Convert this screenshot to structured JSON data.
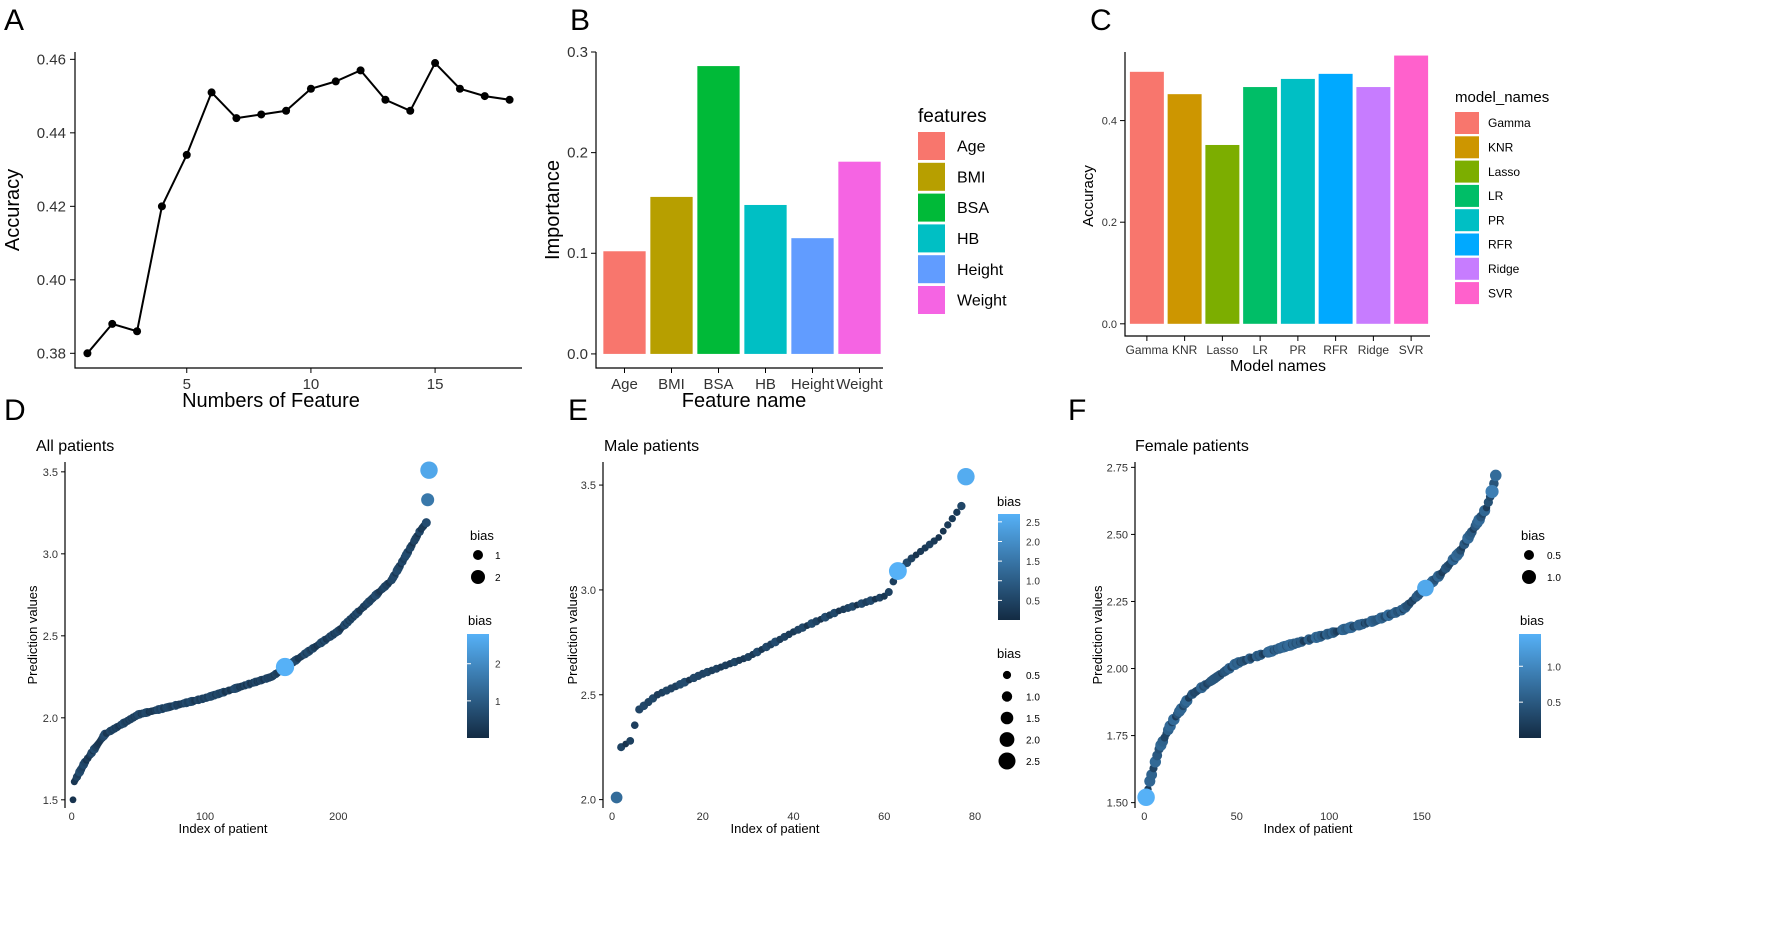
{
  "colors": {
    "line": "#000000",
    "point_dark": "#132B43",
    "point_light": "#56B1F7"
  },
  "chart_data": [
    {
      "panel": "A",
      "type": "line",
      "xlabel": "Numbers of Feature",
      "ylabel": "Accuracy",
      "x": [
        1,
        2,
        3,
        4,
        5,
        6,
        7,
        8,
        9,
        10,
        11,
        12,
        13,
        14,
        15,
        16,
        17,
        18
      ],
      "y": [
        0.38,
        0.388,
        0.386,
        0.42,
        0.434,
        0.451,
        0.444,
        0.445,
        0.446,
        0.452,
        0.454,
        0.457,
        0.449,
        0.446,
        0.459,
        0.452,
        0.45,
        0.449
      ],
      "xlim": [
        0.5,
        18.5
      ],
      "ylim": [
        0.376,
        0.462
      ],
      "xticks": [
        5,
        10,
        15
      ],
      "yticks": [
        0.38,
        0.4,
        0.42,
        0.44,
        0.46
      ],
      "ytick_labels": [
        "0.38",
        "0.40",
        "0.42",
        "0.44",
        "0.46"
      ]
    },
    {
      "panel": "B",
      "type": "bar",
      "xlabel": "Feature name",
      "ylabel": "Importance",
      "categories": [
        "Age",
        "BMI",
        "BSA",
        "HB",
        "Height",
        "Weight"
      ],
      "values": [
        0.102,
        0.156,
        0.286,
        0.148,
        0.115,
        0.191
      ],
      "colors": [
        "#F8766D",
        "#B79F00",
        "#00BA38",
        "#00BFC4",
        "#619CFF",
        "#F564E3"
      ],
      "ylim": [
        -0.014,
        0.3
      ],
      "yticks": [
        0.0,
        0.1,
        0.2,
        0.3
      ],
      "ytick_labels": [
        "0.0",
        "0.1",
        "0.2",
        "0.3"
      ],
      "legend_title": "features",
      "legend_entries": [
        "Age",
        "BMI",
        "BSA",
        "HB",
        "Height",
        "Weight"
      ]
    },
    {
      "panel": "C",
      "type": "bar",
      "xlabel": "Model names",
      "ylabel": "Accuracy",
      "categories": [
        "Gamma",
        "KNR",
        "Lasso",
        "LR",
        "PR",
        "RFR",
        "Ridge",
        "SVR"
      ],
      "values": [
        0.496,
        0.452,
        0.352,
        0.466,
        0.482,
        0.492,
        0.466,
        0.528
      ],
      "colors": [
        "#F8766D",
        "#CD9600",
        "#7CAE00",
        "#00BE67",
        "#00BFC4",
        "#00A9FF",
        "#C77CFF",
        "#FF61CC"
      ],
      "ylim": [
        -0.024,
        0.535
      ],
      "yticks": [
        0.0,
        0.2,
        0.4
      ],
      "ytick_labels": [
        "0.0",
        "0.2",
        "0.4"
      ],
      "legend_title": "model_names",
      "legend_entries": [
        "Gamma",
        "KNR",
        "Lasso",
        "LR",
        "PR",
        "RFR",
        "Ridge",
        "SVR"
      ]
    },
    {
      "panel": "D",
      "type": "scatter",
      "title": "All patients",
      "xlabel": "Index of patient",
      "ylabel": "Prediction values",
      "n": 270,
      "xlim": [
        -5,
        280
      ],
      "ylim": [
        1.45,
        3.56
      ],
      "xticks": [
        0,
        100,
        200
      ],
      "yticks": [
        1.5,
        2.0,
        2.5,
        3.0,
        3.5
      ],
      "ytick_labels": [
        "1.5",
        "2.0",
        "2.5",
        "3.0",
        "3.5"
      ],
      "curve_anchors": [
        [
          1,
          1.5
        ],
        [
          2,
          1.61
        ],
        [
          10,
          1.73
        ],
        [
          25,
          1.9
        ],
        [
          50,
          2.02
        ],
        [
          100,
          2.12
        ],
        [
          150,
          2.25
        ],
        [
          200,
          2.53
        ],
        [
          240,
          2.84
        ],
        [
          262,
          3.15
        ],
        [
          266,
          3.19
        ],
        [
          267,
          3.33
        ],
        [
          268,
          3.51
        ]
      ],
      "highlights": [
        [
          268,
          3.51,
          2.6
        ],
        [
          267,
          3.33,
          1.6
        ],
        [
          160,
          2.31,
          2.8
        ]
      ],
      "size_legend_title": "bias",
      "size_legend_entries": [
        "1",
        "2"
      ],
      "color_legend_title": "bias",
      "color_legend_ticks": [
        "1",
        "2"
      ],
      "bias_max": 2.8
    },
    {
      "panel": "E",
      "type": "scatter",
      "title": "Male patients",
      "xlabel": "Index of patient",
      "ylabel": "Prediction values",
      "n": 78,
      "xlim": [
        -2,
        80
      ],
      "ylim": [
        1.96,
        3.61
      ],
      "xticks": [
        0,
        20,
        40,
        60,
        80
      ],
      "yticks": [
        2.0,
        2.5,
        3.0,
        3.5
      ],
      "ytick_labels": [
        "2.0",
        "2.5",
        "3.0",
        "3.5"
      ],
      "curve_anchors": [
        [
          1,
          2.01
        ],
        [
          2,
          2.25
        ],
        [
          4,
          2.28
        ],
        [
          6,
          2.43
        ],
        [
          10,
          2.5
        ],
        [
          20,
          2.6
        ],
        [
          30,
          2.68
        ],
        [
          40,
          2.8
        ],
        [
          50,
          2.9
        ],
        [
          60,
          2.97
        ],
        [
          61,
          2.99
        ],
        [
          62,
          3.04
        ],
        [
          63,
          3.09
        ],
        [
          66,
          3.15
        ],
        [
          72,
          3.25
        ],
        [
          77,
          3.4
        ],
        [
          78,
          3.54
        ]
      ],
      "highlights": [
        [
          78,
          3.54,
          2.6
        ],
        [
          63,
          3.09,
          2.7
        ],
        [
          1,
          2.01,
          1.3
        ]
      ],
      "color_legend_title": "bias",
      "color_legend_ticks": [
        "0.5",
        "1.0",
        "1.5",
        "2.0",
        "2.5"
      ],
      "size_legend_title": "bias",
      "size_legend_entries": [
        "0.5",
        "1.0",
        "1.5",
        "2.0",
        "2.5"
      ],
      "bias_max": 2.7
    },
    {
      "panel": "F",
      "type": "scatter",
      "title": "Female patients",
      "xlabel": "Index of patient",
      "ylabel": "Prediction values",
      "n": 190,
      "xlim": [
        -5,
        195
      ],
      "ylim": [
        1.48,
        2.77
      ],
      "xticks": [
        0,
        50,
        100,
        150
      ],
      "yticks": [
        1.5,
        1.75,
        2.0,
        2.25,
        2.5,
        2.75
      ],
      "ytick_labels": [
        "1.50",
        "1.75",
        "2.00",
        "2.25",
        "2.50",
        "2.75"
      ],
      "curve_anchors": [
        [
          1,
          1.52
        ],
        [
          3,
          1.58
        ],
        [
          8,
          1.7
        ],
        [
          15,
          1.8
        ],
        [
          25,
          1.9
        ],
        [
          50,
          2.02
        ],
        [
          75,
          2.08
        ],
        [
          100,
          2.13
        ],
        [
          125,
          2.18
        ],
        [
          140,
          2.22
        ],
        [
          152,
          2.3
        ],
        [
          160,
          2.35
        ],
        [
          170,
          2.43
        ],
        [
          178,
          2.52
        ],
        [
          185,
          2.6
        ],
        [
          188,
          2.66
        ],
        [
          190,
          2.72
        ]
      ],
      "highlights": [
        [
          1,
          1.52,
          1.45
        ],
        [
          152,
          2.3,
          1.35
        ],
        [
          188,
          2.66,
          0.9
        ],
        [
          190,
          2.72,
          0.7
        ]
      ],
      "size_legend_title": "bias",
      "size_legend_entries": [
        "0.5",
        "1.0"
      ],
      "color_legend_title": "bias",
      "color_legend_ticks": [
        "0.5",
        "1.0"
      ],
      "bias_max": 1.45
    }
  ]
}
